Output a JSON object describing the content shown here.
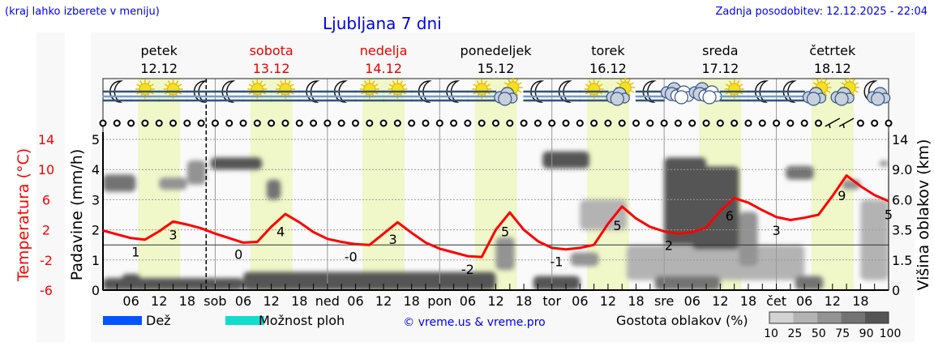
{
  "header": {
    "hint": "(kraj lahko izberete v meniju)",
    "title": "Ljubljana 7 dni",
    "updated": "Zadnja posodobitev: 12.12.2025 - 22:04"
  },
  "days": [
    {
      "name": "petek",
      "date": "12.12",
      "weekend": false,
      "abbr": ""
    },
    {
      "name": "sobota",
      "date": "13.12",
      "weekend": true,
      "abbr": "sob"
    },
    {
      "name": "nedelja",
      "date": "14.12",
      "weekend": true,
      "abbr": "ned"
    },
    {
      "name": "ponedeljek",
      "date": "15.12",
      "weekend": false,
      "abbr": "pon"
    },
    {
      "name": "torek",
      "date": "16.12",
      "weekend": false,
      "abbr": "tor"
    },
    {
      "name": "sreda",
      "date": "17.12",
      "weekend": false,
      "abbr": "sre"
    },
    {
      "name": "četrtek",
      "date": "18.12",
      "weekend": false,
      "abbr": "čet"
    }
  ],
  "icons": [
    "moon-fog",
    "sun-fog",
    "sun-fog",
    "moon-fog",
    "moon-fog",
    "sun-fog",
    "sun-fog",
    "moon-fog",
    "moon-fog",
    "sun-fog",
    "sun-fog",
    "moon-fog",
    "moon-fog",
    "sun-fog",
    "sun-cloud",
    "moon-fog",
    "moon-fog",
    "sun-fog",
    "sun-cloud",
    "moon-fog",
    "cloudy",
    "cloudy",
    "sun-fog",
    "moon-fog",
    "moon-fog",
    "sun-cloud",
    "sun-cloud",
    "moon-cloud"
  ],
  "legend": {
    "rain_label": "Dež",
    "rain_color": "#0055ff",
    "showers_label": "Možnost ploh",
    "showers_color": "#11ddcc",
    "credit": "© vreme.us & vreme.pro",
    "cloud_label": "Gostota oblakov (%)",
    "cloud_scale": [
      {
        "label": "10",
        "color": "#d3d3d3"
      },
      {
        "label": "25",
        "color": "#b3b3b3"
      },
      {
        "label": "50",
        "color": "#939393"
      },
      {
        "label": "75",
        "color": "#737373"
      },
      {
        "label": "90",
        "color": "#555555"
      },
      {
        "label": "100",
        "color": ""
      }
    ]
  },
  "chart_data": {
    "type": "line",
    "title": "Ljubljana 7 dni",
    "x_unit": "hours",
    "time_ticks": [
      "06",
      "12",
      "18"
    ],
    "current_time": "12.12.2025 22:04",
    "daylight_hours": [
      7.5,
      16.5
    ],
    "axes": {
      "temperature": {
        "label": "Temperatura (°C)",
        "ticks": [
          14,
          10,
          6,
          2,
          -2,
          -6
        ],
        "range": [
          -6,
          14
        ],
        "color": "#ff0000"
      },
      "precipitation": {
        "label": "Padavine (mm/h)",
        "ticks": [
          0,
          1,
          2,
          3,
          4,
          5
        ],
        "range": [
          0,
          5.5
        ]
      },
      "cloud_height": {
        "label": "Višina oblakov (km)",
        "ticks": [
          0,
          1.5,
          3.5,
          6.0,
          9.0,
          14
        ]
      }
    },
    "temperature": {
      "step_hours": 3,
      "values": [
        1.9,
        1.4,
        0.9,
        0.7,
        1.8,
        3.1,
        2.7,
        2.2,
        1.5,
        0.9,
        0.3,
        0.4,
        2.4,
        4.1,
        3.0,
        1.7,
        0.8,
        0.4,
        0.1,
        0.0,
        1.5,
        3.0,
        1.6,
        0.3,
        -0.5,
        -1.0,
        -1.5,
        -1.6,
        2.0,
        4.3,
        2.0,
        0.5,
        -0.4,
        -0.6,
        -0.4,
        0.0,
        2.8,
        5.1,
        3.5,
        2.4,
        1.8,
        1.5,
        1.7,
        2.3,
        4.5,
        6.2,
        5.6,
        4.6,
        3.7,
        3.3,
        3.6,
        4.0,
        6.5,
        9.2,
        7.8,
        6.6,
        5.8
      ]
    },
    "extremes": [
      {
        "hour": 7,
        "text": "1"
      },
      {
        "hour": 15,
        "text": "3"
      },
      {
        "hour": 29,
        "text": "0"
      },
      {
        "hour": 38,
        "text": "4"
      },
      {
        "hour": 53,
        "text": "-0"
      },
      {
        "hour": 62,
        "text": "3"
      },
      {
        "hour": 78,
        "text": "-2"
      },
      {
        "hour": 86,
        "text": "5"
      },
      {
        "hour": 97,
        "text": "-1"
      },
      {
        "hour": 110,
        "text": "5"
      },
      {
        "hour": 121,
        "text": "2"
      },
      {
        "hour": 134,
        "text": "6"
      },
      {
        "hour": 144,
        "text": "3"
      },
      {
        "hour": 158,
        "text": "9"
      },
      {
        "hour": 168,
        "text": "5"
      }
    ],
    "precipitation": [],
    "wind": {
      "step_hours": 3,
      "barb_hours": [
        156,
        159
      ]
    },
    "clouds": [
      {
        "from": 0,
        "to": 7,
        "low_km": 6.8,
        "high_km": 8.5,
        "density": 75
      },
      {
        "from": 4,
        "to": 8,
        "low_km": 0,
        "high_km": 0.8,
        "density": 90
      },
      {
        "from": 0,
        "to": 30,
        "low_km": 0,
        "high_km": 0.6,
        "density": 90
      },
      {
        "from": 12,
        "to": 18,
        "low_km": 7,
        "high_km": 8.2,
        "density": 50
      },
      {
        "from": 18,
        "to": 22,
        "low_km": 7.5,
        "high_km": 10.5,
        "density": 50
      },
      {
        "from": 23,
        "to": 34,
        "low_km": 9,
        "high_km": 11,
        "density": 90
      },
      {
        "from": 35,
        "to": 38,
        "low_km": 6,
        "high_km": 8,
        "density": 75
      },
      {
        "from": 30,
        "to": 84,
        "low_km": 0,
        "high_km": 0.9,
        "density": 90
      },
      {
        "from": 84,
        "to": 88,
        "low_km": 1,
        "high_km": 3,
        "density": 50
      },
      {
        "from": 76,
        "to": 84,
        "low_km": 0,
        "high_km": 0.5,
        "density": 75
      },
      {
        "from": 92,
        "to": 102,
        "low_km": 0,
        "high_km": 0.7,
        "density": 90
      },
      {
        "from": 94,
        "to": 104,
        "low_km": 9.2,
        "high_km": 12,
        "density": 90
      },
      {
        "from": 100,
        "to": 106,
        "low_km": 1.2,
        "high_km": 2,
        "density": 50
      },
      {
        "from": 102,
        "to": 112,
        "low_km": 3.5,
        "high_km": 6,
        "density": 25
      },
      {
        "from": 112,
        "to": 150,
        "low_km": 0.5,
        "high_km": 2.5,
        "density": 25
      },
      {
        "from": 118,
        "to": 132,
        "low_km": 0,
        "high_km": 0.7,
        "density": 75
      },
      {
        "from": 120,
        "to": 129,
        "low_km": 2.5,
        "high_km": 11,
        "density": 90
      },
      {
        "from": 126,
        "to": 136,
        "low_km": 2.2,
        "high_km": 9.5,
        "density": 90
      },
      {
        "from": 136,
        "to": 140,
        "low_km": 1.2,
        "high_km": 5,
        "density": 50
      },
      {
        "from": 146,
        "to": 152,
        "low_km": 8,
        "high_km": 9.6,
        "density": 75
      },
      {
        "from": 148,
        "to": 154,
        "low_km": 0,
        "high_km": 0.7,
        "density": 75
      },
      {
        "from": 158,
        "to": 162,
        "low_km": 7,
        "high_km": 8,
        "density": 50
      },
      {
        "from": 162,
        "to": 168,
        "low_km": 0.5,
        "high_km": 6,
        "density": 25
      },
      {
        "from": 166,
        "to": 168,
        "low_km": 9.5,
        "high_km": 10.5,
        "density": 50
      }
    ]
  }
}
